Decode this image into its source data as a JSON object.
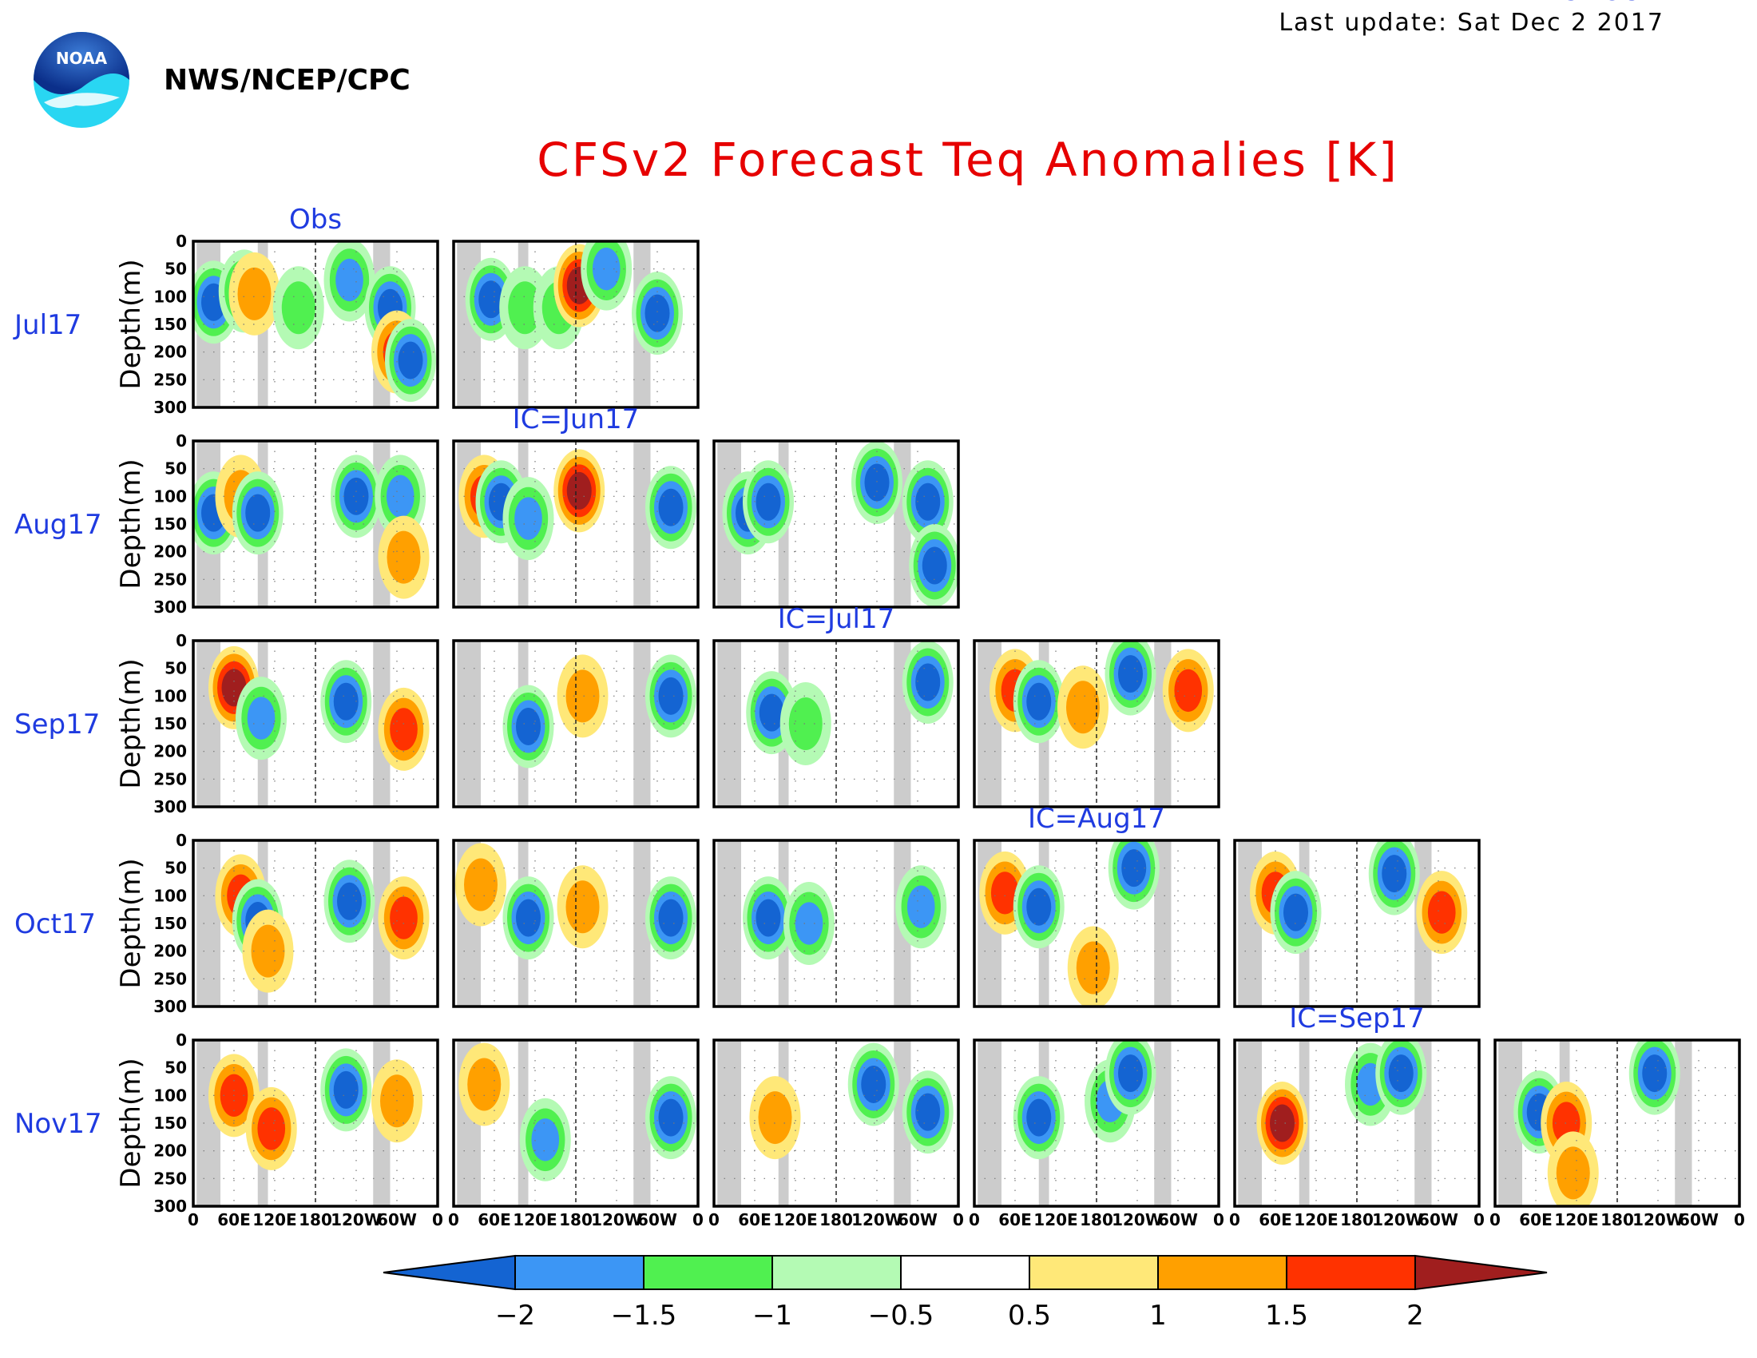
{
  "header": {
    "last_update": "Last update: Sat Dec 2 2017",
    "agency": "NWS/NCEP/CPC",
    "logo_text": "NOAA"
  },
  "chart_data": {
    "type": "heatmap",
    "title": "CFSv2 Forecast Teq Anomalies [K]",
    "ylabel": "Depth(m)",
    "y_ticks": [
      "0",
      "50",
      "100",
      "150",
      "200",
      "250",
      "300"
    ],
    "x_ticks": [
      "0",
      "60E",
      "120E",
      "180",
      "120W",
      "60W",
      "0"
    ],
    "column_labels": [
      "Obs",
      "IC=Jun17",
      "IC=Jul17",
      "IC=Aug17",
      "IC=Sep17",
      "IC=Oct17"
    ],
    "row_labels": [
      "Jul17",
      "Aug17",
      "Sep17",
      "Oct17",
      "Nov17"
    ],
    "colorbar": {
      "ticks": [
        "−2",
        "−1.5",
        "−1",
        "−0.5",
        "0.5",
        "1",
        "1.5",
        "2"
      ],
      "colors": [
        "#1464d2",
        "#3c96f5",
        "#50f050",
        "#b4fab4",
        "#ffffff",
        "#ffe878",
        "#ffa000",
        "#ff3200",
        "#a01e1e"
      ]
    },
    "panels": [
      {
        "row": 0,
        "col": 0,
        "anomalies": [
          {
            "lon": 30,
            "depth": 110,
            "v": -2
          },
          {
            "lon": 75,
            "depth": 90,
            "v": -1.5
          },
          {
            "lon": 90,
            "depth": 95,
            "v": 1
          },
          {
            "lon": 155,
            "depth": 120,
            "v": -1
          },
          {
            "lon": 230,
            "depth": 70,
            "v": -1.5
          },
          {
            "lon": 290,
            "depth": 120,
            "v": -2
          },
          {
            "lon": 300,
            "depth": 200,
            "v": 1.5
          },
          {
            "lon": 320,
            "depth": 215,
            "v": -2
          }
        ]
      },
      {
        "row": 0,
        "col": 1,
        "anomalies": [
          {
            "lon": 55,
            "depth": 105,
            "v": -2
          },
          {
            "lon": 105,
            "depth": 120,
            "v": -1
          },
          {
            "lon": 155,
            "depth": 120,
            "v": -1
          },
          {
            "lon": 185,
            "depth": 80,
            "v": 2
          },
          {
            "lon": 225,
            "depth": 50,
            "v": -1.5
          },
          {
            "lon": 300,
            "depth": 130,
            "v": -2
          }
        ]
      },
      {
        "row": 1,
        "col": 0,
        "anomalies": [
          {
            "lon": 30,
            "depth": 130,
            "v": -2
          },
          {
            "lon": 70,
            "depth": 100,
            "v": 1
          },
          {
            "lon": 95,
            "depth": 130,
            "v": -2
          },
          {
            "lon": 240,
            "depth": 100,
            "v": -2
          },
          {
            "lon": 305,
            "depth": 100,
            "v": -1.5
          },
          {
            "lon": 310,
            "depth": 210,
            "v": 1
          }
        ]
      },
      {
        "row": 1,
        "col": 1,
        "anomalies": [
          {
            "lon": 45,
            "depth": 100,
            "v": 1.5
          },
          {
            "lon": 70,
            "depth": 110,
            "v": -2
          },
          {
            "lon": 110,
            "depth": 140,
            "v": -1.5
          },
          {
            "lon": 185,
            "depth": 90,
            "v": 2
          },
          {
            "lon": 320,
            "depth": 120,
            "v": -2
          }
        ]
      },
      {
        "row": 1,
        "col": 2,
        "anomalies": [
          {
            "lon": 50,
            "depth": 130,
            "v": -2
          },
          {
            "lon": 80,
            "depth": 110,
            "v": -2
          },
          {
            "lon": 240,
            "depth": 75,
            "v": -2
          },
          {
            "lon": 315,
            "depth": 110,
            "v": -2
          },
          {
            "lon": 325,
            "depth": 225,
            "v": -2
          }
        ]
      },
      {
        "row": 2,
        "col": 0,
        "anomalies": [
          {
            "lon": 60,
            "depth": 85,
            "v": 2
          },
          {
            "lon": 100,
            "depth": 140,
            "v": -1.5
          },
          {
            "lon": 225,
            "depth": 110,
            "v": -2
          },
          {
            "lon": 310,
            "depth": 160,
            "v": 1.5
          }
        ]
      },
      {
        "row": 2,
        "col": 1,
        "anomalies": [
          {
            "lon": 110,
            "depth": 155,
            "v": -2
          },
          {
            "lon": 190,
            "depth": 100,
            "v": 1
          },
          {
            "lon": 320,
            "depth": 100,
            "v": -2
          }
        ]
      },
      {
        "row": 2,
        "col": 2,
        "anomalies": [
          {
            "lon": 85,
            "depth": 130,
            "v": -2
          },
          {
            "lon": 135,
            "depth": 150,
            "v": -1
          },
          {
            "lon": 315,
            "depth": 75,
            "v": -2
          }
        ]
      },
      {
        "row": 2,
        "col": 3,
        "anomalies": [
          {
            "lon": 60,
            "depth": 90,
            "v": 1.5
          },
          {
            "lon": 95,
            "depth": 110,
            "v": -2
          },
          {
            "lon": 160,
            "depth": 120,
            "v": 1
          },
          {
            "lon": 230,
            "depth": 60,
            "v": -2
          },
          {
            "lon": 315,
            "depth": 90,
            "v": 1.5
          }
        ]
      },
      {
        "row": 3,
        "col": 0,
        "anomalies": [
          {
            "lon": 70,
            "depth": 100,
            "v": 1.5
          },
          {
            "lon": 95,
            "depth": 145,
            "v": -2
          },
          {
            "lon": 110,
            "depth": 200,
            "v": 1
          },
          {
            "lon": 230,
            "depth": 110,
            "v": -2
          },
          {
            "lon": 310,
            "depth": 140,
            "v": 1.5
          }
        ]
      },
      {
        "row": 3,
        "col": 1,
        "anomalies": [
          {
            "lon": 40,
            "depth": 80,
            "v": 1
          },
          {
            "lon": 110,
            "depth": 140,
            "v": -2
          },
          {
            "lon": 190,
            "depth": 120,
            "v": 1
          },
          {
            "lon": 320,
            "depth": 140,
            "v": -2
          }
        ]
      },
      {
        "row": 3,
        "col": 2,
        "anomalies": [
          {
            "lon": 80,
            "depth": 140,
            "v": -2
          },
          {
            "lon": 140,
            "depth": 150,
            "v": -1.5
          },
          {
            "lon": 305,
            "depth": 120,
            "v": -1.5
          }
        ]
      },
      {
        "row": 3,
        "col": 3,
        "anomalies": [
          {
            "lon": 45,
            "depth": 95,
            "v": 1.5
          },
          {
            "lon": 95,
            "depth": 120,
            "v": -2
          },
          {
            "lon": 175,
            "depth": 230,
            "v": 1
          },
          {
            "lon": 235,
            "depth": 50,
            "v": -2
          }
        ]
      },
      {
        "row": 3,
        "col": 4,
        "anomalies": [
          {
            "lon": 60,
            "depth": 95,
            "v": 1.5
          },
          {
            "lon": 90,
            "depth": 130,
            "v": -2
          },
          {
            "lon": 235,
            "depth": 60,
            "v": -2
          },
          {
            "lon": 305,
            "depth": 130,
            "v": 1.5
          }
        ]
      },
      {
        "row": 4,
        "col": 0,
        "anomalies": [
          {
            "lon": 60,
            "depth": 100,
            "v": 1.5
          },
          {
            "lon": 115,
            "depth": 160,
            "v": 1.5
          },
          {
            "lon": 225,
            "depth": 90,
            "v": -2
          },
          {
            "lon": 300,
            "depth": 110,
            "v": 1
          }
        ]
      },
      {
        "row": 4,
        "col": 1,
        "anomalies": [
          {
            "lon": 45,
            "depth": 80,
            "v": 1
          },
          {
            "lon": 135,
            "depth": 180,
            "v": -1.5
          },
          {
            "lon": 320,
            "depth": 140,
            "v": -2
          }
        ]
      },
      {
        "row": 4,
        "col": 2,
        "anomalies": [
          {
            "lon": 90,
            "depth": 140,
            "v": 1
          },
          {
            "lon": 235,
            "depth": 80,
            "v": -2
          },
          {
            "lon": 315,
            "depth": 130,
            "v": -2
          }
        ]
      },
      {
        "row": 4,
        "col": 3,
        "anomalies": [
          {
            "lon": 95,
            "depth": 140,
            "v": -2
          },
          {
            "lon": 200,
            "depth": 110,
            "v": -1.5
          },
          {
            "lon": 230,
            "depth": 60,
            "v": -2
          }
        ]
      },
      {
        "row": 4,
        "col": 4,
        "anomalies": [
          {
            "lon": 70,
            "depth": 150,
            "v": 2
          },
          {
            "lon": 200,
            "depth": 80,
            "v": -1.5
          },
          {
            "lon": 245,
            "depth": 60,
            "v": -2
          }
        ]
      },
      {
        "row": 4,
        "col": 5,
        "anomalies": [
          {
            "lon": 65,
            "depth": 130,
            "v": -2
          },
          {
            "lon": 105,
            "depth": 150,
            "v": 1.5
          },
          {
            "lon": 115,
            "depth": 240,
            "v": 1
          },
          {
            "lon": 235,
            "depth": 60,
            "v": -2
          }
        ]
      }
    ]
  }
}
